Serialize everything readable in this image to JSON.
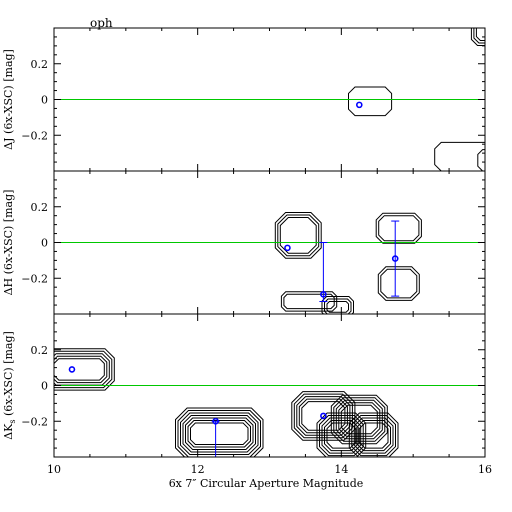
{
  "chart_data": {
    "type": "scatter",
    "object_label": "oph",
    "xlabel": "6x 7″ Circular Aperture Magnitude",
    "xlim": [
      10,
      16
    ],
    "x_ticks": [
      10,
      12,
      14,
      16
    ],
    "x_tick_labels": [
      "10",
      "12",
      "14",
      "16"
    ],
    "colors": {
      "points": "#0000ff",
      "reference_line": "#00c800",
      "contours": "#000000"
    },
    "panels": [
      {
        "id": "J",
        "ylabel": "ΔJ (6x-XSC) [mag]",
        "ylim": [
          -0.4,
          0.4
        ],
        "y_ticks": [
          0.2,
          0,
          -0.2
        ],
        "y_tick_labels": [
          "0.2",
          "0",
          "−0.2"
        ],
        "reference_y": 0,
        "points": [
          {
            "x": 14.25,
            "y": -0.03
          }
        ],
        "contours": [
          {
            "cx": 14.4,
            "cy": -0.01,
            "hw": 0.3,
            "hh": 0.08,
            "rings": 1
          },
          {
            "cx": 15.7,
            "cy": -0.32,
            "hw": 0.4,
            "hh": 0.08,
            "rings": 1
          },
          {
            "cx": 16.05,
            "cy": -0.34,
            "hw": 0.15,
            "hh": 0.06,
            "rings": 1
          },
          {
            "cx": 16.0,
            "cy": 0.38,
            "hw": 0.12,
            "hh": 0.05,
            "rings": 3
          }
        ]
      },
      {
        "id": "H",
        "ylabel": "ΔH (6x-XSC) [mag]",
        "ylim": [
          -0.4,
          0.4
        ],
        "y_ticks": [
          0.2,
          0,
          -0.2
        ],
        "y_tick_labels": [
          "0.2",
          "0",
          "−0.2"
        ],
        "reference_y": 0,
        "points": [
          {
            "x": 13.25,
            "y": -0.03
          },
          {
            "x": 13.75,
            "y": -0.29,
            "yerr_low": 0.04,
            "yerr_high": 0.29
          },
          {
            "x": 14.75,
            "y": -0.09,
            "yerr_low": 0.21,
            "yerr_high": 0.21
          }
        ],
        "contours": [
          {
            "cx": 13.4,
            "cy": 0.04,
            "hw": 0.25,
            "hh": 0.1,
            "rings": 3
          },
          {
            "cx": 14.8,
            "cy": 0.08,
            "hw": 0.28,
            "hh": 0.07,
            "rings": 2
          },
          {
            "cx": 14.8,
            "cy": -0.23,
            "hw": 0.25,
            "hh": 0.08,
            "rings": 2
          },
          {
            "cx": 13.55,
            "cy": -0.33,
            "hw": 0.35,
            "hh": 0.04,
            "rings": 2
          },
          {
            "cx": 13.95,
            "cy": -0.36,
            "hw": 0.15,
            "hh": 0.03,
            "rings": 3
          }
        ]
      },
      {
        "id": "Ks",
        "ylabel": "ΔK",
        "ylabel_sub": "s",
        "ylabel_rest": " (6x-XSC) [mag]",
        "ylim": [
          -0.4,
          0.4
        ],
        "y_ticks": [
          0.2,
          0,
          -0.2
        ],
        "y_tick_labels": [
          "0.2",
          "0",
          "−0.2"
        ],
        "reference_y": 0,
        "points": [
          {
            "x": 10.25,
            "y": 0.09
          },
          {
            "x": 12.25,
            "y": -0.2,
            "yerr_low": 0.2,
            "yerr_high": 0.0
          },
          {
            "x": 13.75,
            "y": -0.17
          }
        ],
        "contours": [
          {
            "cx": 10.35,
            "cy": 0.09,
            "hw": 0.35,
            "hh": 0.06,
            "rings": 5
          },
          {
            "cx": 12.3,
            "cy": -0.27,
            "hw": 0.4,
            "hh": 0.06,
            "rings": 7
          },
          {
            "cx": 13.75,
            "cy": -0.17,
            "hw": 0.3,
            "hh": 0.08,
            "rings": 5
          },
          {
            "cx": 14.25,
            "cy": -0.19,
            "hw": 0.25,
            "hh": 0.08,
            "rings": 5
          },
          {
            "cx": 14.0,
            "cy": -0.28,
            "hw": 0.2,
            "hh": 0.07,
            "rings": 5
          },
          {
            "cx": 14.45,
            "cy": -0.28,
            "hw": 0.2,
            "hh": 0.07,
            "rings": 5
          }
        ]
      }
    ]
  }
}
